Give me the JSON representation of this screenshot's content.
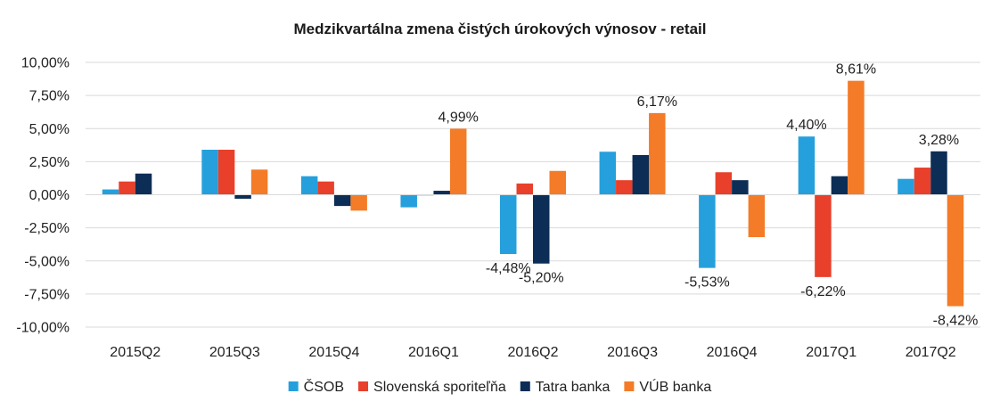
{
  "chart_data": {
    "type": "bar",
    "title": "Medzikvartálna zmena čistých úrokových výnosov - retail",
    "xlabel": "",
    "ylabel": "",
    "ylim": [
      -10,
      10
    ],
    "yticks": [
      10,
      7.5,
      5,
      2.5,
      0,
      -2.5,
      -5,
      -7.5,
      -10
    ],
    "ytick_labels": [
      "10,00%",
      "7,50%",
      "5,00%",
      "2,50%",
      "0,00%",
      "-2,50%",
      "-5,00%",
      "-7,50%",
      "-10,00%"
    ],
    "grid": true,
    "legend_position": "bottom",
    "categories": [
      "2015Q2",
      "2015Q3",
      "2015Q4",
      "2016Q1",
      "2016Q2",
      "2016Q3",
      "2016Q4",
      "2017Q1",
      "2017Q2"
    ],
    "series": [
      {
        "name": "ČSOB",
        "color": "#25a0dc",
        "values": [
          0.4,
          3.4,
          1.4,
          -0.95,
          -4.48,
          3.25,
          -5.53,
          4.4,
          1.2
        ]
      },
      {
        "name": "Slovenská sporiteľňa",
        "color": "#e8402b",
        "values": [
          1.0,
          3.4,
          1.0,
          -0.05,
          0.85,
          1.1,
          1.7,
          -6.22,
          2.05
        ]
      },
      {
        "name": "Tatra banka",
        "color": "#0c2d55",
        "values": [
          1.6,
          -0.3,
          -0.85,
          0.3,
          -5.2,
          3.0,
          1.1,
          1.4,
          3.28
        ]
      },
      {
        "name": "VÚB banka",
        "color": "#f47b27",
        "values": [
          0.0,
          1.9,
          -1.2,
          4.99,
          1.8,
          6.17,
          -3.2,
          8.61,
          -8.42
        ]
      }
    ],
    "data_labels": [
      {
        "text": "4,99%",
        "category": "2016Q1",
        "series": "VÚB banka"
      },
      {
        "text": "-4,48%",
        "category": "2016Q2",
        "series": "ČSOB"
      },
      {
        "text": "-5,20%",
        "category": "2016Q2",
        "series": "Tatra banka"
      },
      {
        "text": "6,17%",
        "category": "2016Q3",
        "series": "VÚB banka"
      },
      {
        "text": "-5,53%",
        "category": "2016Q4",
        "series": "ČSOB"
      },
      {
        "text": "4,40%",
        "category": "2017Q1",
        "series": "ČSOB"
      },
      {
        "text": "-6,22%",
        "category": "2017Q1",
        "series": "Slovenská sporiteľňa"
      },
      {
        "text": "8,61%",
        "category": "2017Q1",
        "series": "VÚB banka"
      },
      {
        "text": "3,28%",
        "category": "2017Q2",
        "series": "Tatra banka"
      },
      {
        "text": "-8,42%",
        "category": "2017Q2",
        "series": "VÚB banka"
      }
    ]
  }
}
